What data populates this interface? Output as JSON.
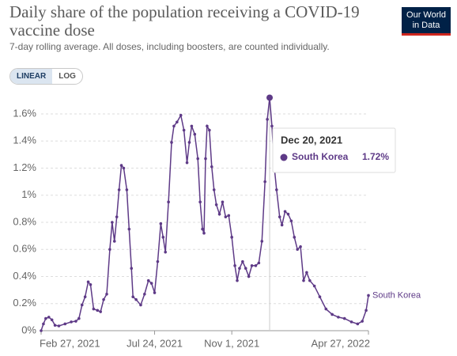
{
  "chart_data": {
    "type": "line",
    "title": "Daily share of the population receiving a COVID-19 vaccine dose",
    "subtitle": "7-day rolling average. All doses, including boosters, are counted individually.",
    "logo": [
      "Our World",
      "in Data"
    ],
    "controls": [
      "LINEAR",
      "LOG"
    ],
    "x": [
      "2021-02-27",
      "2021-03-02",
      "2021-03-05",
      "2021-03-09",
      "2021-03-13",
      "2021-03-17",
      "2021-03-22",
      "2021-03-30",
      "2021-04-07",
      "2021-04-13",
      "2021-04-17",
      "2021-04-21",
      "2021-04-25",
      "2021-04-29",
      "2021-05-02",
      "2021-05-06",
      "2021-05-11",
      "2021-05-15",
      "2021-05-19",
      "2021-05-23",
      "2021-05-27",
      "2021-05-30",
      "2021-06-02",
      "2021-06-05",
      "2021-06-08",
      "2021-06-11",
      "2021-06-14",
      "2021-06-18",
      "2021-06-21",
      "2021-06-24",
      "2021-06-26",
      "2021-06-30",
      "2021-07-06",
      "2021-07-11",
      "2021-07-16",
      "2021-07-20",
      "2021-07-24",
      "2021-07-28",
      "2021-08-01",
      "2021-08-04",
      "2021-08-07",
      "2021-08-11",
      "2021-08-15",
      "2021-08-18",
      "2021-08-22",
      "2021-08-27",
      "2021-08-31",
      "2021-09-04",
      "2021-09-07",
      "2021-09-10",
      "2021-09-14",
      "2021-09-18",
      "2021-09-21",
      "2021-09-24",
      "2021-09-26",
      "2021-09-28",
      "2021-09-30",
      "2021-10-03",
      "2021-10-06",
      "2021-10-09",
      "2021-10-12",
      "2021-10-16",
      "2021-10-20",
      "2021-10-24",
      "2021-10-28",
      "2021-11-01",
      "2021-11-05",
      "2021-11-08",
      "2021-11-11",
      "2021-11-15",
      "2021-11-19",
      "2021-11-23",
      "2021-11-27",
      "2021-12-02",
      "2021-12-06",
      "2021-12-10",
      "2021-12-14",
      "2021-12-17",
      "2021-12-20",
      "2021-12-23",
      "2021-12-26",
      "2021-12-29",
      "2022-01-02",
      "2022-01-05",
      "2022-01-09",
      "2022-01-13",
      "2022-01-17",
      "2022-01-21",
      "2022-01-25",
      "2022-01-29",
      "2022-02-02",
      "2022-02-06",
      "2022-02-10",
      "2022-02-16",
      "2022-02-23",
      "2022-03-03",
      "2022-03-11",
      "2022-03-19",
      "2022-03-27",
      "2022-04-05",
      "2022-04-13",
      "2022-04-19",
      "2022-04-24",
      "2022-04-27"
    ],
    "series": [
      {
        "name": "South Korea",
        "color": "#5e3a87",
        "values": [
          0,
          0.05,
          0.09,
          0.1,
          0.08,
          0.04,
          0.035,
          0.05,
          0.065,
          0.07,
          0.09,
          0.19,
          0.25,
          0.36,
          0.34,
          0.16,
          0.15,
          0.14,
          0.23,
          0.27,
          0.6,
          0.8,
          0.66,
          0.84,
          1.04,
          1.22,
          1.2,
          1.04,
          0.75,
          0.46,
          0.25,
          0.23,
          0.19,
          0.27,
          0.37,
          0.35,
          0.28,
          0.51,
          0.79,
          0.69,
          0.58,
          0.95,
          1.39,
          1.51,
          1.54,
          1.59,
          1.48,
          1.24,
          1.39,
          1.51,
          1.45,
          1.27,
          0.95,
          0.75,
          0.72,
          1.27,
          1.51,
          1.48,
          1.21,
          1.04,
          0.93,
          0.86,
          0.95,
          0.84,
          0.85,
          0.69,
          0.48,
          0.37,
          0.46,
          0.51,
          0.46,
          0.4,
          0.48,
          0.48,
          0.5,
          0.66,
          1.1,
          1.56,
          1.72,
          1.51,
          1.21,
          1.04,
          0.84,
          0.78,
          0.88,
          0.86,
          0.81,
          0.69,
          0.6,
          0.62,
          0.37,
          0.43,
          0.37,
          0.33,
          0.25,
          0.16,
          0.12,
          0.1,
          0.09,
          0.065,
          0.05,
          0.07,
          0.15,
          0.26
        ]
      }
    ],
    "xlim": [
      "2021-02-27",
      "2022-04-27"
    ],
    "xticks": [
      {
        "value": "2021-02-27",
        "label": "Feb 27, 2021"
      },
      {
        "value": "2021-07-24",
        "label": "Jul 24, 2021"
      },
      {
        "value": "2021-11-01",
        "label": "Nov 1, 2021"
      },
      {
        "value": "2022-04-27",
        "label": "Apr 27, 2022"
      }
    ],
    "ylim": [
      0,
      1.6
    ],
    "yticks": [
      {
        "value": 0,
        "label": "0%"
      },
      {
        "value": 0.2,
        "label": "0.2%"
      },
      {
        "value": 0.4,
        "label": "0.4%"
      },
      {
        "value": 0.6,
        "label": "0.6%"
      },
      {
        "value": 0.8,
        "label": "0.8%"
      },
      {
        "value": 1,
        "label": "1%"
      },
      {
        "value": 1.2,
        "label": "1.2%"
      },
      {
        "value": 1.4,
        "label": "1.4%"
      },
      {
        "value": 1.6,
        "label": "1.6%"
      }
    ],
    "grid": true,
    "highlight": {
      "x": {
        "value": "2021-12-20",
        "label": "Dec 20, 2021"
      },
      "value": 1.72,
      "label": "1.72%"
    }
  }
}
